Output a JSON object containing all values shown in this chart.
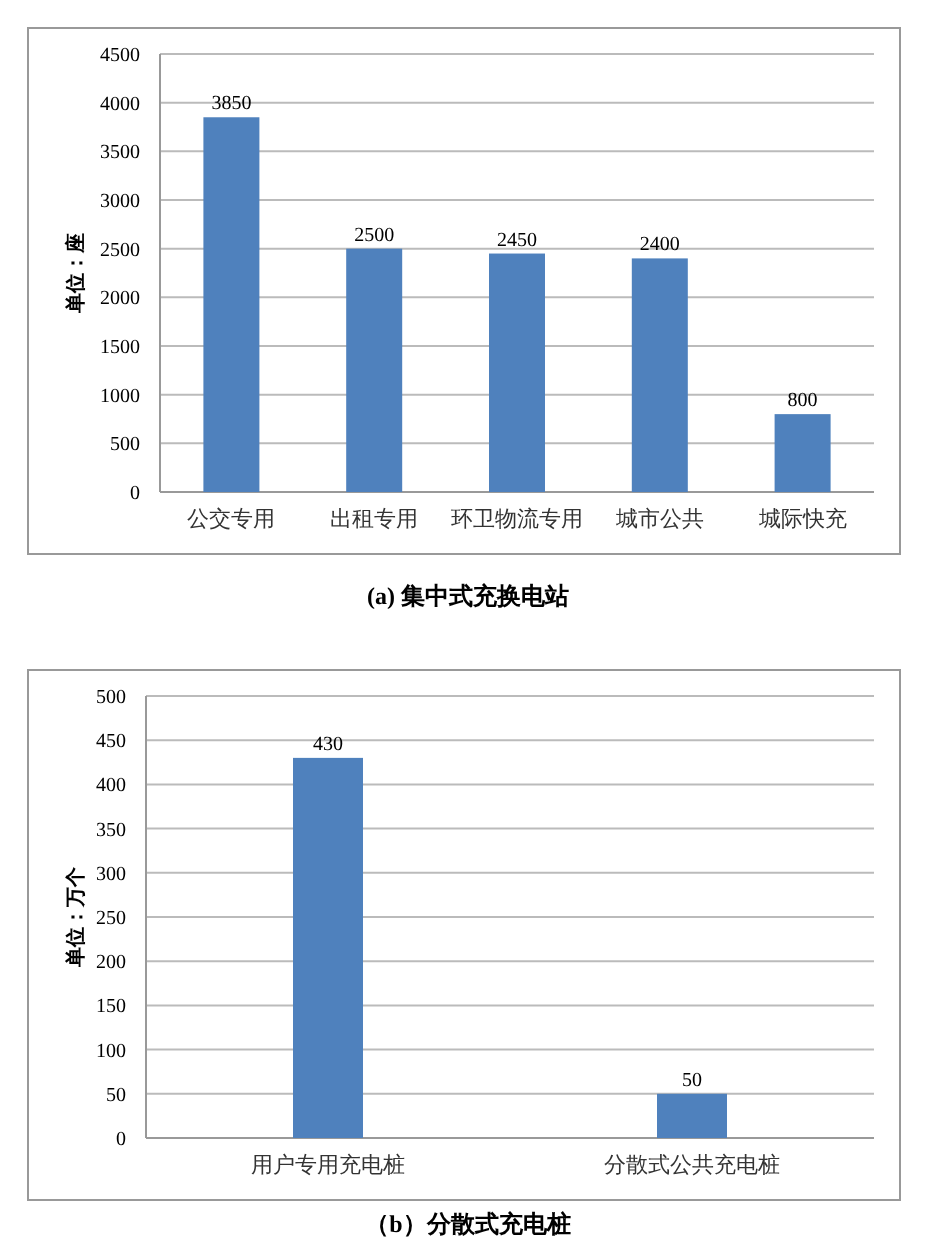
{
  "chart_data": [
    {
      "type": "bar",
      "title": "(a) 集中式充换电站",
      "ylabel": "单位：座",
      "categories": [
        "公交专用",
        "出租专用",
        "环卫物流专用",
        "城市公共",
        "城际快充"
      ],
      "values": [
        3850,
        2500,
        2450,
        2400,
        800
      ],
      "color": "#4f81bd",
      "ylim": [
        0,
        4500
      ],
      "yticks": [
        0,
        500,
        1000,
        1500,
        2000,
        2500,
        3000,
        3500,
        4000,
        4500
      ],
      "grid": "y",
      "data_labels": true
    },
    {
      "type": "bar",
      "title": "（b）分散式充电桩",
      "ylabel": "单位：万个",
      "categories": [
        "用户专用充电桩",
        "分散式公共充电桩"
      ],
      "values": [
        430,
        50
      ],
      "color": "#4f81bd",
      "ylim": [
        0,
        500
      ],
      "yticks": [
        0,
        50,
        100,
        150,
        200,
        250,
        300,
        350,
        400,
        450,
        500
      ],
      "grid": "y",
      "data_labels": true
    }
  ]
}
